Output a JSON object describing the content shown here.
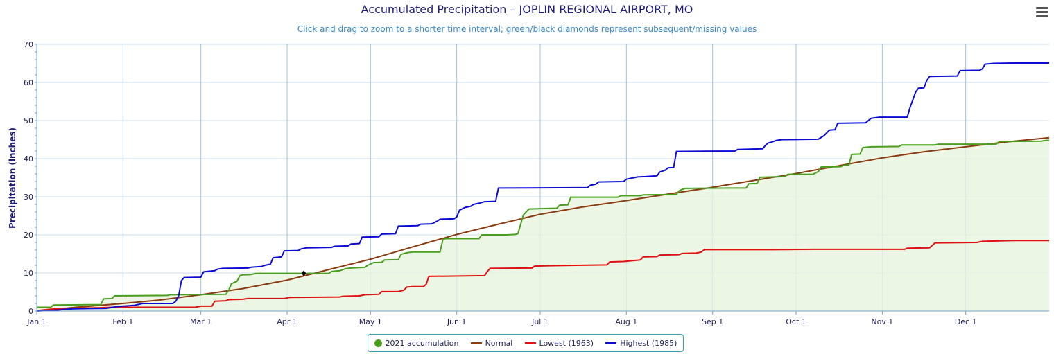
{
  "chart_data": {
    "type": "line",
    "title": "Accumulated Precipitation – JOPLIN REGIONAL AIRPORT, MO",
    "subtitle": "Click and drag to zoom to a shorter time interval; green/black diamonds represent subsequent/missing values",
    "ylabel": "Precipitation (inches)",
    "xlabel": "",
    "ylim": [
      0,
      70
    ],
    "yticks": [
      0,
      10,
      20,
      30,
      40,
      50,
      60,
      70
    ],
    "xlim": [
      1,
      365
    ],
    "xticks": [
      {
        "day": 1,
        "label": "Jan 1"
      },
      {
        "day": 32,
        "label": "Feb 1"
      },
      {
        "day": 60,
        "label": "Mar 1"
      },
      {
        "day": 91,
        "label": "Apr 1"
      },
      {
        "day": 121,
        "label": "May 1"
      },
      {
        "day": 152,
        "label": "Jun 1"
      },
      {
        "day": 182,
        "label": "Jul 1"
      },
      {
        "day": 213,
        "label": "Aug 1"
      },
      {
        "day": 244,
        "label": "Sep 1"
      },
      {
        "day": 274,
        "label": "Oct 1"
      },
      {
        "day": 305,
        "label": "Nov 1"
      },
      {
        "day": 335,
        "label": "Dec 1"
      }
    ],
    "grid": true,
    "legend_position": "bottom-center",
    "series": [
      {
        "name": "2021 accumulation",
        "color": "#4a9e1e",
        "fill": "#e8f4e0",
        "points": [
          [
            1,
            1.0
          ],
          [
            6,
            1.0
          ],
          [
            7,
            1.6
          ],
          [
            24,
            1.7
          ],
          [
            25,
            3.2
          ],
          [
            28,
            3.3
          ],
          [
            29,
            4.0
          ],
          [
            48,
            4.1
          ],
          [
            49,
            4.3
          ],
          [
            69,
            4.4
          ],
          [
            70,
            5.5
          ],
          [
            71,
            7.2
          ],
          [
            73,
            7.8
          ],
          [
            74,
            9.3
          ],
          [
            75,
            9.5
          ],
          [
            78,
            9.6
          ],
          [
            80,
            9.9
          ],
          [
            106,
            9.9
          ],
          [
            107,
            10.4
          ],
          [
            110,
            10.6
          ],
          [
            112,
            11.1
          ],
          [
            114,
            11.3
          ],
          [
            119,
            11.5
          ],
          [
            120,
            12.0
          ],
          [
            122,
            12.7
          ],
          [
            125,
            12.8
          ],
          [
            126,
            13.4
          ],
          [
            131,
            13.5
          ],
          [
            132,
            14.9
          ],
          [
            134,
            15.3
          ],
          [
            136,
            15.5
          ],
          [
            146,
            15.5
          ],
          [
            147,
            18.7
          ],
          [
            148,
            19.0
          ],
          [
            160,
            19.0
          ],
          [
            161,
            20.0
          ],
          [
            170,
            20.0
          ],
          [
            173,
            20.1
          ],
          [
            174,
            20.3
          ],
          [
            176,
            25.3
          ],
          [
            178,
            26.8
          ],
          [
            188,
            27.0
          ],
          [
            189,
            27.8
          ],
          [
            192,
            27.9
          ],
          [
            193,
            29.9
          ],
          [
            210,
            29.9
          ],
          [
            211,
            30.3
          ],
          [
            218,
            30.3
          ],
          [
            219,
            30.5
          ],
          [
            231,
            30.6
          ],
          [
            232,
            31.6
          ],
          [
            234,
            32.2
          ],
          [
            250,
            32.3
          ],
          [
            256,
            32.3
          ],
          [
            257,
            33.4
          ],
          [
            260,
            33.5
          ],
          [
            261,
            35.1
          ],
          [
            270,
            35.3
          ],
          [
            271,
            35.9
          ],
          [
            280,
            35.9
          ],
          [
            282,
            36.6
          ],
          [
            283,
            37.8
          ],
          [
            290,
            37.9
          ],
          [
            291,
            38.2
          ],
          [
            293,
            38.3
          ],
          [
            294,
            41.1
          ],
          [
            297,
            41.2
          ],
          [
            298,
            42.9
          ],
          [
            301,
            43.1
          ],
          [
            311,
            43.2
          ],
          [
            312,
            43.6
          ],
          [
            324,
            43.6
          ],
          [
            325,
            43.8
          ],
          [
            346,
            43.8
          ],
          [
            347,
            44.5
          ],
          [
            362,
            44.6
          ],
          [
            364,
            44.8
          ],
          [
            365,
            44.8
          ]
        ],
        "markers": [
          {
            "x": 97,
            "y": 9.9,
            "color": "#000000"
          }
        ]
      },
      {
        "name": "Normal",
        "color": "#8b3a0f",
        "points": [
          [
            1,
            0.0
          ],
          [
            15,
            1.0
          ],
          [
            32,
            2.0
          ],
          [
            45,
            2.9
          ],
          [
            60,
            4.3
          ],
          [
            75,
            5.9
          ],
          [
            91,
            8.1
          ],
          [
            106,
            10.9
          ],
          [
            121,
            13.6
          ],
          [
            136,
            16.8
          ],
          [
            152,
            20.1
          ],
          [
            167,
            22.8
          ],
          [
            182,
            25.4
          ],
          [
            197,
            27.3
          ],
          [
            213,
            29.0
          ],
          [
            228,
            30.7
          ],
          [
            244,
            32.5
          ],
          [
            259,
            34.3
          ],
          [
            274,
            36.1
          ],
          [
            289,
            38.1
          ],
          [
            305,
            40.2
          ],
          [
            320,
            41.8
          ],
          [
            335,
            43.1
          ],
          [
            350,
            44.4
          ],
          [
            365,
            45.5
          ]
        ]
      },
      {
        "name": "Lowest (1963)",
        "color": "#e01010",
        "points": [
          [
            1,
            0.1
          ],
          [
            6,
            0.5
          ],
          [
            12,
            0.7
          ],
          [
            24,
            0.9
          ],
          [
            28,
            1.0
          ],
          [
            58,
            1.0
          ],
          [
            60,
            1.3
          ],
          [
            64,
            1.3
          ],
          [
            65,
            2.6
          ],
          [
            69,
            2.7
          ],
          [
            70,
            3.0
          ],
          [
            75,
            3.1
          ],
          [
            77,
            3.3
          ],
          [
            90,
            3.3
          ],
          [
            92,
            3.6
          ],
          [
            110,
            3.7
          ],
          [
            111,
            3.9
          ],
          [
            117,
            4.0
          ],
          [
            119,
            4.3
          ],
          [
            124,
            4.4
          ],
          [
            125,
            5.1
          ],
          [
            131,
            5.1
          ],
          [
            133,
            5.5
          ],
          [
            134,
            6.3
          ],
          [
            136,
            6.4
          ],
          [
            140,
            6.4
          ],
          [
            141,
            7.0
          ],
          [
            142,
            9.1
          ],
          [
            162,
            9.3
          ],
          [
            163,
            10.4
          ],
          [
            164,
            11.2
          ],
          [
            179,
            11.3
          ],
          [
            180,
            11.8
          ],
          [
            185,
            11.9
          ],
          [
            195,
            12.0
          ],
          [
            206,
            12.1
          ],
          [
            207,
            12.9
          ],
          [
            212,
            13.0
          ],
          [
            218,
            13.4
          ],
          [
            219,
            14.2
          ],
          [
            224,
            14.3
          ],
          [
            225,
            14.7
          ],
          [
            232,
            14.8
          ],
          [
            233,
            15.1
          ],
          [
            238,
            15.2
          ],
          [
            240,
            15.5
          ],
          [
            241,
            16.1
          ],
          [
            265,
            16.1
          ],
          [
            280,
            16.2
          ],
          [
            313,
            16.2
          ],
          [
            314,
            16.5
          ],
          [
            322,
            16.6
          ],
          [
            324,
            17.9
          ],
          [
            339,
            18.0
          ],
          [
            341,
            18.3
          ],
          [
            352,
            18.5
          ],
          [
            365,
            18.5
          ]
        ]
      },
      {
        "name": "Highest (1985)",
        "color": "#0b0bd4",
        "points": [
          [
            1,
            0.0
          ],
          [
            9,
            0.3
          ],
          [
            14,
            0.6
          ],
          [
            26,
            0.7
          ],
          [
            30,
            1.2
          ],
          [
            36,
            1.5
          ],
          [
            39,
            2.0
          ],
          [
            50,
            2.0
          ],
          [
            51,
            2.6
          ],
          [
            52,
            4.0
          ],
          [
            53,
            8.0
          ],
          [
            54,
            8.8
          ],
          [
            60,
            8.9
          ],
          [
            61,
            10.3
          ],
          [
            65,
            10.6
          ],
          [
            66,
            11.0
          ],
          [
            68,
            11.2
          ],
          [
            77,
            11.3
          ],
          [
            78,
            11.5
          ],
          [
            82,
            11.7
          ],
          [
            83,
            12.0
          ],
          [
            85,
            12.3
          ],
          [
            86,
            14.0
          ],
          [
            89,
            14.2
          ],
          [
            90,
            15.8
          ],
          [
            95,
            15.9
          ],
          [
            96,
            16.3
          ],
          [
            98,
            16.6
          ],
          [
            107,
            16.7
          ],
          [
            108,
            17.0
          ],
          [
            113,
            17.1
          ],
          [
            114,
            17.6
          ],
          [
            117,
            17.7
          ],
          [
            118,
            19.4
          ],
          [
            124,
            19.5
          ],
          [
            125,
            20.2
          ],
          [
            130,
            20.3
          ],
          [
            131,
            22.3
          ],
          [
            138,
            22.4
          ],
          [
            139,
            22.8
          ],
          [
            143,
            22.9
          ],
          [
            145,
            23.6
          ],
          [
            146,
            24.1
          ],
          [
            151,
            24.2
          ],
          [
            152,
            24.7
          ],
          [
            153,
            26.5
          ],
          [
            155,
            27.2
          ],
          [
            157,
            27.5
          ],
          [
            158,
            28.0
          ],
          [
            160,
            28.3
          ],
          [
            162,
            28.7
          ],
          [
            166,
            28.8
          ],
          [
            167,
            32.3
          ],
          [
            199,
            32.4
          ],
          [
            200,
            33.0
          ],
          [
            202,
            33.3
          ],
          [
            203,
            33.9
          ],
          [
            212,
            34.0
          ],
          [
            213,
            34.6
          ],
          [
            217,
            35.2
          ],
          [
            220,
            35.3
          ],
          [
            224,
            35.5
          ],
          [
            225,
            36.5
          ],
          [
            227,
            37.0
          ],
          [
            228,
            37.6
          ],
          [
            230,
            37.7
          ],
          [
            231,
            41.9
          ],
          [
            252,
            42.0
          ],
          [
            253,
            42.4
          ],
          [
            262,
            42.6
          ],
          [
            263,
            43.5
          ],
          [
            264,
            44.1
          ],
          [
            265,
            44.3
          ],
          [
            267,
            44.8
          ],
          [
            269,
            45.0
          ],
          [
            282,
            45.1
          ],
          [
            284,
            46.0
          ],
          [
            286,
            47.5
          ],
          [
            288,
            47.6
          ],
          [
            289,
            49.3
          ],
          [
            299,
            49.4
          ],
          [
            301,
            50.6
          ],
          [
            304,
            50.9
          ],
          [
            314,
            50.9
          ],
          [
            315,
            53.5
          ],
          [
            317,
            57.5
          ],
          [
            318,
            58.5
          ],
          [
            320,
            58.6
          ],
          [
            321,
            60.5
          ],
          [
            322,
            61.6
          ],
          [
            332,
            61.7
          ],
          [
            333,
            63.1
          ],
          [
            340,
            63.2
          ],
          [
            341,
            63.6
          ],
          [
            342,
            64.8
          ],
          [
            345,
            65.0
          ],
          [
            352,
            65.1
          ],
          [
            365,
            65.1
          ]
        ]
      }
    ]
  },
  "legend": {
    "items": [
      {
        "label": "2021 accumulation",
        "color": "#4a9e1e",
        "kind": "dot"
      },
      {
        "label": "Normal",
        "color": "#8b3a0f",
        "kind": "line"
      },
      {
        "label": "Lowest (1963)",
        "color": "#e01010",
        "kind": "line"
      },
      {
        "label": "Highest (1985)",
        "color": "#0b0bd4",
        "kind": "line"
      }
    ]
  },
  "menu": {
    "icon": "hamburger-menu-icon"
  }
}
